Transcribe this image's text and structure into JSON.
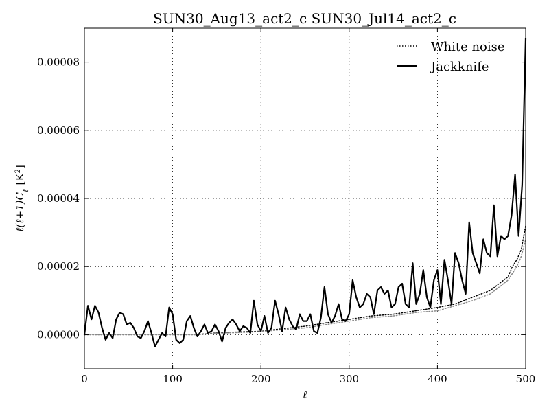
{
  "chart_data": {
    "type": "line",
    "title": "SUN30_Aug13_act2_c SUN30_Jul14_act2_c",
    "xlabel": "ℓ",
    "ylabel": "ℓ(ℓ+1)C",
    "ylabel_sub": "ℓ",
    "ylabel_unit": "[K",
    "ylabel_unit_sup": "2",
    "ylabel_unit_end": "]",
    "xlim": [
      0,
      500
    ],
    "ylim": [
      -1e-05,
      9e-05
    ],
    "x_ticks": [
      0,
      100,
      200,
      300,
      400,
      500
    ],
    "x_tick_labels": [
      "0",
      "100",
      "200",
      "300",
      "400",
      "500"
    ],
    "y_ticks": [
      0,
      2e-05,
      4e-05,
      6e-05,
      8e-05
    ],
    "y_tick_labels": [
      "0.00000",
      "0.00002",
      "0.00004",
      "0.00006",
      "0.00008"
    ],
    "grid": true,
    "legend_position": "top-right",
    "colors": {
      "jackknife": "#000000",
      "white_noise": "#000000",
      "white_noise_secondary": "#888888",
      "grid": "#000000"
    },
    "series": [
      {
        "name": "White noise",
        "style": "dotted",
        "x": [
          0,
          25,
          50,
          75,
          100,
          125,
          150,
          175,
          200,
          225,
          250,
          275,
          300,
          325,
          350,
          375,
          400,
          420,
          440,
          460,
          470,
          480,
          485,
          490,
          495,
          500
        ],
        "values": [
          0.0,
          0.0,
          0.0,
          0.0,
          0.0,
          0.0,
          5e-07,
          8e-07,
          1e-06,
          1.8e-06,
          2.5e-06,
          3.5e-06,
          4.5e-06,
          5.5e-06,
          6e-06,
          7e-06,
          8e-06,
          9e-06,
          1.1e-05,
          1.3e-05,
          1.5e-05,
          1.7e-05,
          2e-05,
          2.2e-05,
          2.5e-05,
          3.2e-05
        ]
      },
      {
        "name": "",
        "style": "dotted-light",
        "x": [
          0,
          25,
          50,
          75,
          100,
          125,
          150,
          175,
          200,
          225,
          250,
          275,
          300,
          325,
          350,
          375,
          400,
          420,
          440,
          460,
          470,
          480,
          485,
          490,
          495,
          500
        ],
        "values": [
          0.0,
          0.0,
          0.0,
          0.0,
          0.0,
          0.0,
          4e-07,
          6e-07,
          9e-07,
          1.5e-06,
          2e-06,
          3e-06,
          4e-06,
          5e-06,
          5.5e-06,
          6.5e-06,
          7e-06,
          8.5e-06,
          1e-05,
          1.2e-05,
          1.4e-05,
          1.6e-05,
          1.8e-05,
          2e-05,
          2.3e-05,
          2.8e-05
        ]
      },
      {
        "name": "Jackknife",
        "style": "solid",
        "x": [
          0,
          4,
          8,
          12,
          16,
          20,
          24,
          28,
          32,
          36,
          40,
          44,
          48,
          52,
          56,
          60,
          64,
          68,
          72,
          76,
          80,
          84,
          88,
          92,
          96,
          100,
          104,
          108,
          112,
          116,
          120,
          124,
          128,
          132,
          136,
          140,
          144,
          148,
          152,
          156,
          160,
          164,
          168,
          172,
          176,
          180,
          184,
          188,
          192,
          196,
          200,
          204,
          208,
          212,
          216,
          220,
          224,
          228,
          232,
          236,
          240,
          244,
          248,
          252,
          256,
          260,
          264,
          268,
          272,
          276,
          280,
          284,
          288,
          292,
          296,
          300,
          304,
          308,
          312,
          316,
          320,
          324,
          328,
          332,
          336,
          340,
          344,
          348,
          352,
          356,
          360,
          364,
          368,
          372,
          376,
          380,
          384,
          388,
          392,
          396,
          400,
          404,
          408,
          412,
          416,
          420,
          424,
          428,
          432,
          436,
          440,
          444,
          448,
          452,
          456,
          460,
          464,
          468,
          472,
          476,
          480,
          484,
          488,
          492,
          496,
          500
        ],
        "values": [
          0.0,
          8.5e-06,
          4.5e-06,
          8.5e-06,
          6.5e-06,
          2e-06,
          -1.5e-06,
          5e-07,
          -1e-06,
          4.5e-06,
          6.5e-06,
          6e-06,
          3e-06,
          3.5e-06,
          2e-06,
          -5e-07,
          -1e-06,
          1e-06,
          4e-06,
          5e-07,
          -3.5e-06,
          -1.5e-06,
          5e-07,
          -5e-07,
          8e-06,
          6e-06,
          -1.5e-06,
          -2.5e-06,
          -1.5e-06,
          4e-06,
          5.5e-06,
          2e-06,
          -5e-07,
          1e-06,
          3e-06,
          5e-07,
          1e-06,
          3e-06,
          1e-06,
          -2e-06,
          2e-06,
          3.5e-06,
          4.5e-06,
          3e-06,
          1e-06,
          2.5e-06,
          2e-06,
          5e-07,
          1e-05,
          3e-06,
          1e-06,
          5.5e-06,
          5e-07,
          2e-06,
          1e-05,
          6e-06,
          1e-06,
          8e-06,
          4.5e-06,
          2.5e-06,
          1.5e-06,
          6e-06,
          4e-06,
          4e-06,
          6e-06,
          1e-06,
          5e-07,
          5e-06,
          1.4e-05,
          6e-06,
          3.5e-06,
          5.5e-06,
          9e-06,
          4.5e-06,
          4e-06,
          6e-06,
          1.6e-05,
          1.1e-05,
          8e-06,
          9e-06,
          1.2e-05,
          1.1e-05,
          6e-06,
          1.3e-05,
          1.4e-05,
          1.2e-05,
          1.3e-05,
          8e-06,
          9e-06,
          1.4e-05,
          1.5e-05,
          9e-06,
          8e-06,
          2.1e-05,
          9e-06,
          1.2e-05,
          1.9e-05,
          1.1e-05,
          8e-06,
          1.6e-05,
          1.9e-05,
          9e-06,
          2.2e-05,
          1.6e-05,
          9e-06,
          2.4e-05,
          2.1e-05,
          1.6e-05,
          1.2e-05,
          3.3e-05,
          2.4e-05,
          2.1e-05,
          1.8e-05,
          2.8e-05,
          2.4e-05,
          2.3e-05,
          3.8e-05,
          2.3e-05,
          2.9e-05,
          2.8e-05,
          2.9e-05,
          3.5e-05,
          4.7e-05,
          2.9e-05,
          4.4e-05,
          8.7e-05
        ]
      }
    ]
  }
}
